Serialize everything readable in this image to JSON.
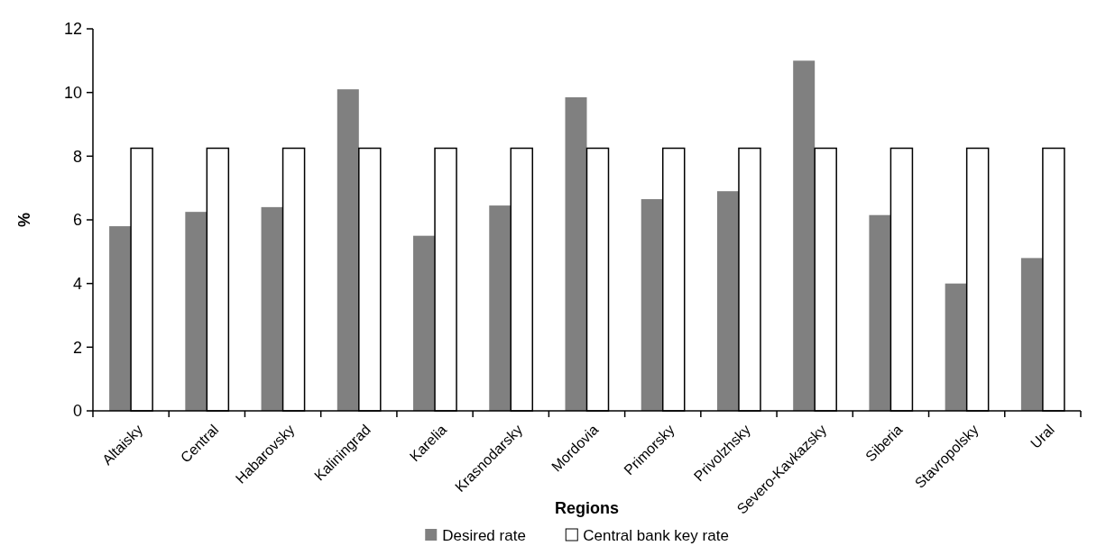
{
  "chart_data": {
    "type": "bar",
    "xlabel": "Regions",
    "ylabel": "%",
    "categories": [
      "Altaisky",
      "Central",
      "Habarovsky",
      "Kaliningrad",
      "Karelia",
      "Krasnodarsky",
      "Mordovia",
      "Primorsky",
      "Privolzhsky",
      "Severo-Kavkazsky",
      "Siberia",
      "Stavropolsky",
      "Ural"
    ],
    "series": [
      {
        "name": "Desired rate",
        "color": "#808080",
        "values": [
          5.8,
          6.25,
          6.4,
          10.1,
          5.5,
          6.45,
          9.85,
          6.65,
          6.9,
          11,
          6.15,
          4,
          4.8
        ]
      },
      {
        "name": "Central bank key rate",
        "color": "#ffffff",
        "values": [
          8.25,
          8.25,
          8.25,
          8.25,
          8.25,
          8.25,
          8.25,
          8.25,
          8.25,
          8.25,
          8.25,
          8.25,
          8.25
        ]
      }
    ],
    "ylim": [
      0,
      12
    ],
    "yticks": [
      0,
      2,
      4,
      6,
      8,
      10,
      12
    ],
    "grid": false,
    "legend": "bottom"
  }
}
